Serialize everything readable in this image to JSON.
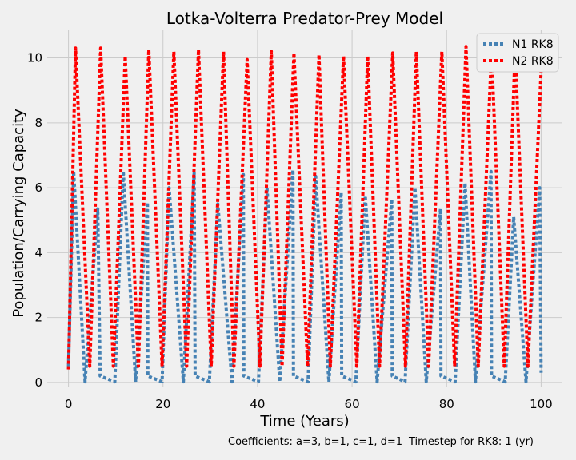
{
  "chart_data": {
    "type": "line",
    "title": "Lotka-Volterra Predator-Prey Model",
    "xlabel": "Time (Years)",
    "ylabel": "Population/Carrying Capacity",
    "xlim": [
      -4.5,
      104.5
    ],
    "ylim": [
      -0.15,
      10.85
    ],
    "xticks": [
      0,
      20,
      40,
      60,
      80,
      100
    ],
    "yticks": [
      0,
      2,
      4,
      6,
      8,
      10
    ],
    "grid": true,
    "legend_position": "top-right",
    "annotations": [
      "Coefficients: a=3, b=1, c=1, d=1",
      "Timestep for RK8: 1 (yr)"
    ],
    "series": [
      {
        "name": "N1 RK8",
        "color": "#4682b4",
        "style": "dotted",
        "x": [
          0,
          1.1,
          3.5,
          6.2,
          6.7,
          9.8,
          11.6,
          14.2,
          16.7,
          16.8,
          19.8,
          21.3,
          24.3,
          26.6,
          26.8,
          29.8,
          31.6,
          34.6,
          37.0,
          37.1,
          40.2,
          42.0,
          44.7,
          47.5,
          47.6,
          50.7,
          52.3,
          55.1,
          57.7,
          57.8,
          60.8,
          62.8,
          65.3,
          68.4,
          68.5,
          71.2,
          73.3,
          75.7,
          78.7,
          78.8,
          81.8,
          83.9,
          86.1,
          89.4,
          89.5,
          92.4,
          94.2,
          96.8,
          99.7,
          100.0
        ],
        "y": [
          0.5,
          6.5,
          0.02,
          5.35,
          0.2,
          0.02,
          6.5,
          0.02,
          5.55,
          0.2,
          0.02,
          6.0,
          0.02,
          6.45,
          0.2,
          0.02,
          5.5,
          0.02,
          6.4,
          0.2,
          0.02,
          6.0,
          0.02,
          6.55,
          0.2,
          0.02,
          6.35,
          0.02,
          5.85,
          0.2,
          0.02,
          5.75,
          0.02,
          5.65,
          0.2,
          0.02,
          6.0,
          0.02,
          5.35,
          0.2,
          0.02,
          6.15,
          0.02,
          6.5,
          0.2,
          0.02,
          5.1,
          0.02,
          6.0,
          0.3
        ]
      },
      {
        "name": "N2 RK8",
        "color": "#ff0000",
        "style": "dotted",
        "x": [
          0,
          1.5,
          4.5,
          6.8,
          9.5,
          12.0,
          14.8,
          17.0,
          19.8,
          22.3,
          25.0,
          27.5,
          30.2,
          32.8,
          35.0,
          37.8,
          40.5,
          42.9,
          45.2,
          47.7,
          50.6,
          53.0,
          55.4,
          58.2,
          61.0,
          63.3,
          65.8,
          68.6,
          71.3,
          73.6,
          76.2,
          79.0,
          81.7,
          84.1,
          86.7,
          89.5,
          92.2,
          94.5,
          97.2,
          100.0
        ],
        "y": [
          0.4,
          10.3,
          0.5,
          10.3,
          0.5,
          10.05,
          0.5,
          10.25,
          0.5,
          10.2,
          0.5,
          10.25,
          0.5,
          10.2,
          0.5,
          9.95,
          0.5,
          10.2,
          0.5,
          10.15,
          0.5,
          10.1,
          0.5,
          10.05,
          0.5,
          10.05,
          0.5,
          10.15,
          0.5,
          10.2,
          0.5,
          10.2,
          0.5,
          10.35,
          0.5,
          10.2,
          0.5,
          10.25,
          0.5,
          9.6
        ]
      }
    ]
  }
}
